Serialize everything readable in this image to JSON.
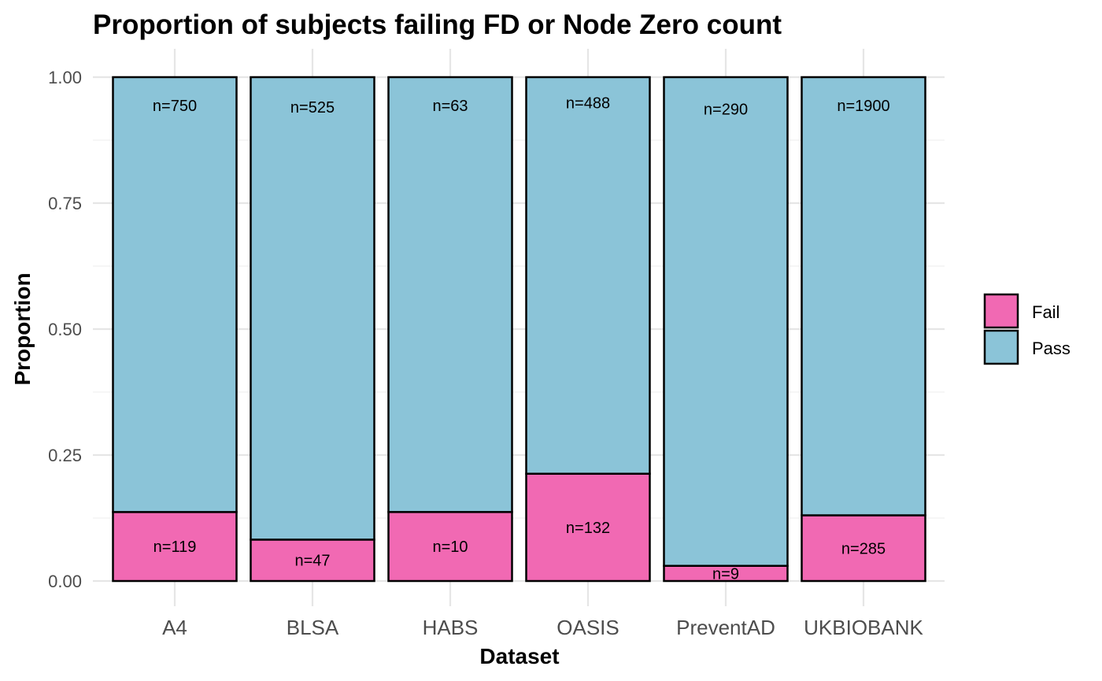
{
  "chart_data": {
    "type": "bar",
    "stacked": true,
    "title": "Proportion of subjects failing FD or Node Zero count",
    "xlabel": "Dataset",
    "ylabel": "Proportion",
    "ylim": [
      0,
      1
    ],
    "yticks": [
      "0.00",
      "0.25",
      "0.50",
      "0.75",
      "1.00"
    ],
    "categories": [
      "A4",
      "BLSA",
      "HABS",
      "OASIS",
      "PreventAD",
      "UKBIOBANK"
    ],
    "series": [
      {
        "name": "Fail",
        "color": "#f169b3",
        "counts": [
          119,
          47,
          10,
          132,
          9,
          285
        ],
        "labels": [
          "n=119",
          "n=47",
          "n=10",
          "n=132",
          "n=9",
          "n=285"
        ]
      },
      {
        "name": "Pass",
        "color": "#8bc4d8",
        "counts": [
          750,
          525,
          63,
          488,
          290,
          1900
        ],
        "labels": [
          "n=750",
          "n=525",
          "n=63",
          "n=488",
          "n=290",
          "n=1900"
        ]
      }
    ],
    "grid": true,
    "legend": "right"
  }
}
